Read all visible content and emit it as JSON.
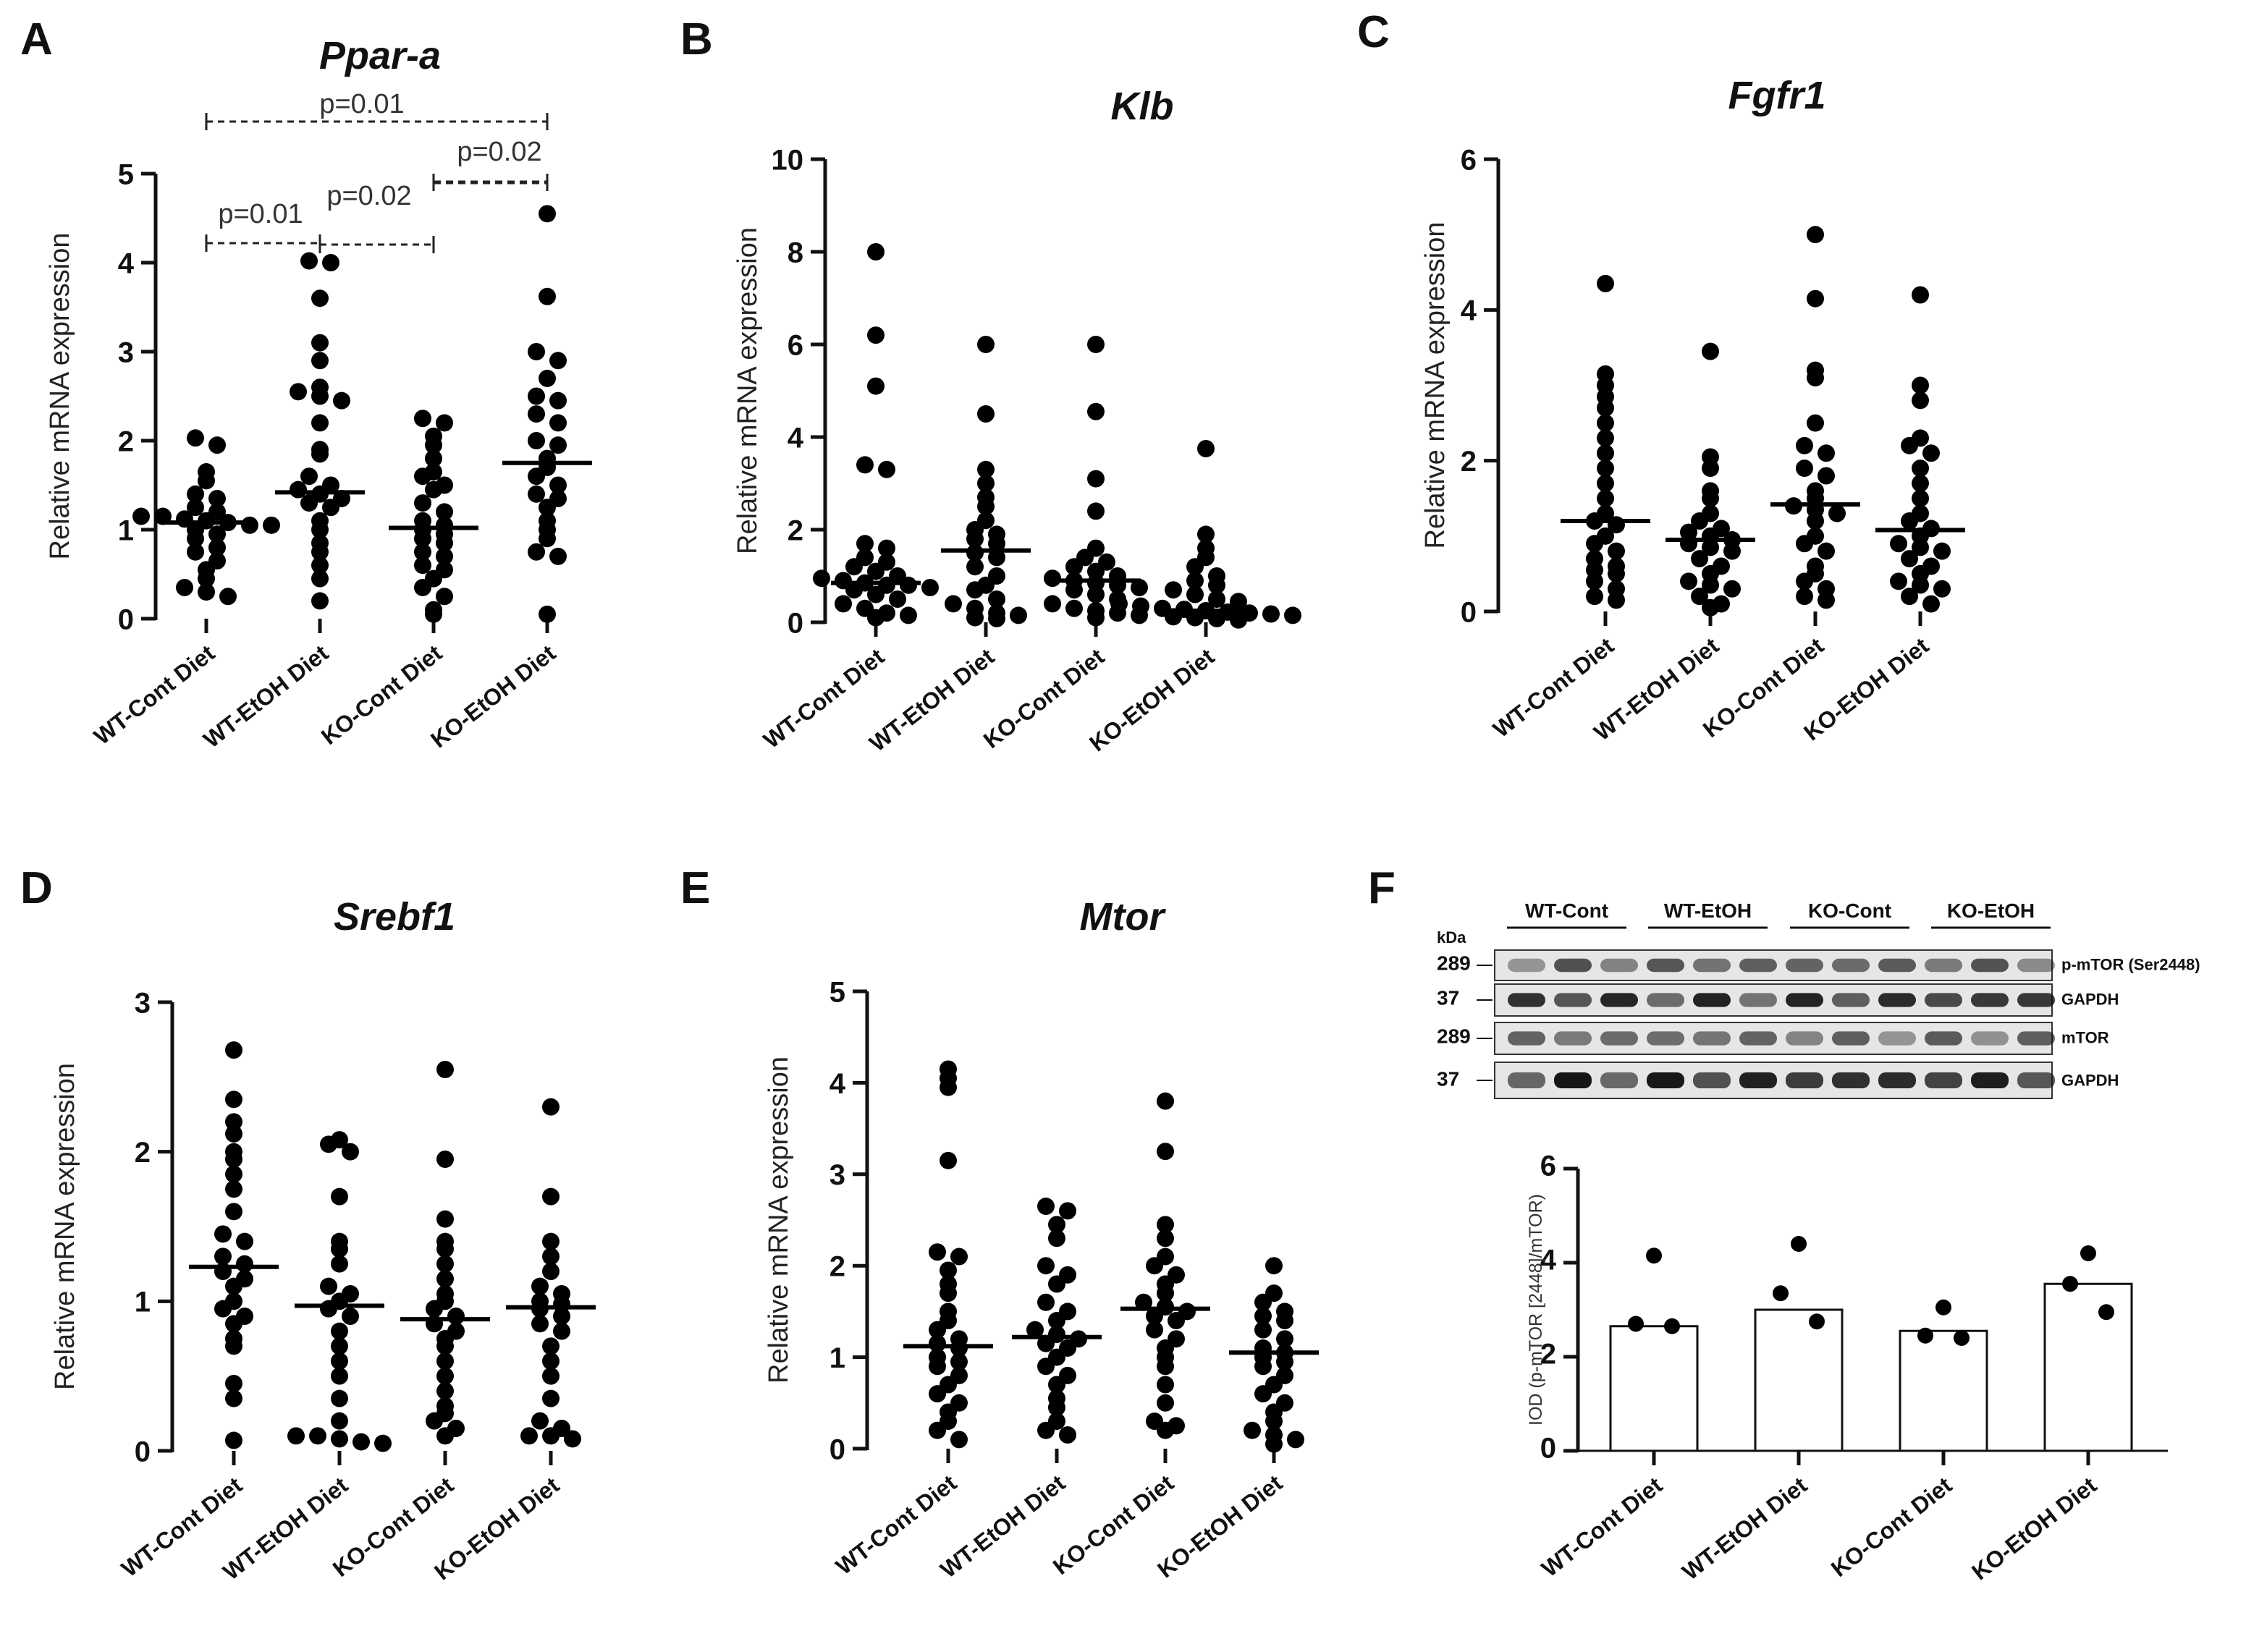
{
  "chart_data": [
    {
      "panel": "A",
      "type": "scatter",
      "title": "Ppar-a",
      "ylabel": "Relative mRNA expression",
      "ylim": [
        0,
        5
      ],
      "yticks": [
        "0",
        "1",
        "2",
        "3",
        "4",
        "5"
      ],
      "categories": [
        "WT-Cont Diet",
        "WT-EtOH Diet",
        "KO-Cont Diet",
        "KO-EtOH Diet"
      ],
      "series": [
        {
          "values": [
            2.03,
            1.95,
            1.65,
            1.55,
            1.4,
            1.35,
            1.25,
            1.2,
            1.15,
            1.15,
            1.12,
            1.1,
            1.08,
            1.05,
            1.05,
            1.0,
            0.95,
            0.9,
            0.8,
            0.75,
            0.65,
            0.55,
            0.45,
            0.35,
            0.3,
            0.25
          ],
          "median": 1.08
        },
        {
          "values": [
            4.02,
            4.0,
            3.6,
            3.1,
            2.9,
            2.6,
            2.55,
            2.5,
            2.45,
            2.2,
            1.9,
            1.85,
            1.6,
            1.5,
            1.45,
            1.4,
            1.35,
            1.3,
            1.25,
            1.1,
            1.0,
            0.85,
            0.75,
            0.6,
            0.45,
            0.2
          ],
          "median": 1.42
        },
        {
          "values": [
            2.25,
            2.2,
            2.05,
            1.95,
            1.8,
            1.65,
            1.6,
            1.5,
            1.45,
            1.3,
            1.2,
            1.1,
            1.05,
            1.0,
            0.95,
            0.9,
            0.85,
            0.75,
            0.7,
            0.6,
            0.55,
            0.45,
            0.35,
            0.25,
            0.1,
            0.05
          ],
          "median": 1.02
        },
        {
          "values": [
            4.55,
            3.62,
            3.0,
            2.9,
            2.7,
            2.5,
            2.45,
            2.3,
            2.2,
            2.0,
            1.95,
            1.8,
            1.7,
            1.6,
            1.5,
            1.4,
            1.35,
            1.25,
            1.1,
            1.0,
            0.9,
            0.75,
            0.7,
            0.05
          ],
          "median": 1.75
        }
      ],
      "significance": [
        {
          "from": 0,
          "to": 3,
          "label": "p=0.01"
        },
        {
          "from": 2,
          "to": 3,
          "label": "p=0.02"
        },
        {
          "from": 0,
          "to": 1,
          "label": "p=0.01"
        },
        {
          "from": 1,
          "to": 2,
          "label": "p=0.02"
        }
      ]
    },
    {
      "panel": "B",
      "type": "scatter",
      "title": "Klb",
      "ylabel": "Relative mRNA expression",
      "ylim": [
        0,
        10
      ],
      "yticks": [
        "0",
        "2",
        "4",
        "6",
        "8",
        "10"
      ],
      "categories": [
        "WT-Cont Diet",
        "WT-EtOH Diet",
        "KO-Cont Diet",
        "KO-EtOH Diet"
      ],
      "series": [
        {
          "values": [
            8.0,
            6.2,
            5.1,
            3.4,
            3.3,
            1.7,
            1.6,
            1.4,
            1.3,
            1.2,
            1.1,
            1.0,
            0.95,
            0.9,
            0.85,
            0.8,
            0.8,
            0.75,
            0.7,
            0.6,
            0.5,
            0.4,
            0.3,
            0.2,
            0.15,
            0.1
          ],
          "median": 0.85
        },
        {
          "values": [
            6.0,
            4.5,
            3.3,
            3.0,
            2.7,
            2.5,
            2.2,
            2.0,
            1.9,
            1.8,
            1.7,
            1.5,
            1.4,
            1.2,
            1.0,
            0.8,
            0.7,
            0.5,
            0.4,
            0.3,
            0.2,
            0.15,
            0.1,
            0.08
          ],
          "median": 1.55
        },
        {
          "values": [
            6.0,
            4.55,
            3.1,
            2.4,
            1.6,
            1.4,
            1.3,
            1.2,
            1.1,
            1.0,
            0.95,
            0.9,
            0.85,
            0.8,
            0.75,
            0.7,
            0.6,
            0.5,
            0.4,
            0.3,
            0.25,
            0.2,
            0.15,
            0.1
          ],
          "median": 0.9
        },
        {
          "values": [
            3.75,
            1.9,
            1.6,
            1.4,
            1.2,
            1.0,
            0.9,
            0.8,
            0.7,
            0.6,
            0.5,
            0.45,
            0.4,
            0.35,
            0.3,
            0.28,
            0.25,
            0.22,
            0.2,
            0.18,
            0.15,
            0.12,
            0.1,
            0.08,
            0.05
          ],
          "median": 0.25
        }
      ]
    },
    {
      "panel": "C",
      "type": "scatter",
      "title": "Fgfr1",
      "ylabel": "Relative mRNA expression",
      "ylim": [
        0,
        6
      ],
      "yticks": [
        "0",
        "2",
        "4",
        "6"
      ],
      "categories": [
        "WT-Cont Diet",
        "WT-EtOH Diet",
        "KO-Cont Diet",
        "KO-EtOH Diet"
      ],
      "series": [
        {
          "values": [
            4.35,
            3.15,
            3.0,
            2.85,
            2.7,
            2.5,
            2.3,
            2.1,
            1.9,
            1.7,
            1.5,
            1.3,
            1.2,
            1.15,
            1.0,
            0.9,
            0.8,
            0.7,
            0.6,
            0.55,
            0.5,
            0.4,
            0.3,
            0.2,
            0.15
          ],
          "median": 1.2
        },
        {
          "values": [
            3.45,
            2.05,
            1.9,
            1.6,
            1.5,
            1.3,
            1.2,
            1.1,
            1.05,
            1.0,
            0.95,
            0.9,
            0.85,
            0.8,
            0.7,
            0.6,
            0.5,
            0.4,
            0.35,
            0.3,
            0.2,
            0.1,
            0.05
          ],
          "median": 0.95
        },
        {
          "values": [
            5.0,
            4.15,
            3.2,
            3.1,
            2.5,
            2.2,
            2.1,
            1.9,
            1.8,
            1.6,
            1.5,
            1.4,
            1.35,
            1.3,
            1.2,
            1.0,
            0.9,
            0.8,
            0.6,
            0.5,
            0.4,
            0.3,
            0.2,
            0.15
          ],
          "median": 1.42
        },
        {
          "values": [
            4.2,
            3.0,
            2.8,
            2.3,
            2.2,
            2.1,
            1.9,
            1.7,
            1.5,
            1.3,
            1.2,
            1.1,
            1.0,
            0.9,
            0.85,
            0.8,
            0.7,
            0.6,
            0.5,
            0.4,
            0.35,
            0.3,
            0.2,
            0.1
          ],
          "median": 1.08
        }
      ]
    },
    {
      "panel": "D",
      "type": "scatter",
      "title": "Srebf1",
      "ylabel": "Relative mRNA expression",
      "ylim": [
        0,
        3
      ],
      "yticks": [
        "0",
        "1",
        "2",
        "3"
      ],
      "categories": [
        "WT-Cont Diet",
        "WT-EtOH Diet",
        "KO-Cont Diet",
        "KO-EtOH Diet"
      ],
      "series": [
        {
          "values": [
            2.68,
            2.35,
            2.2,
            2.12,
            2.0,
            1.95,
            1.85,
            1.75,
            1.6,
            1.45,
            1.4,
            1.3,
            1.25,
            1.2,
            1.15,
            1.1,
            1.0,
            0.95,
            0.9,
            0.85,
            0.75,
            0.7,
            0.45,
            0.35,
            0.07
          ],
          "median": 1.23
        },
        {
          "values": [
            2.08,
            2.05,
            2.0,
            1.7,
            1.4,
            1.35,
            1.25,
            1.1,
            1.05,
            1.0,
            0.95,
            0.9,
            0.8,
            0.7,
            0.6,
            0.5,
            0.35,
            0.2,
            0.1,
            0.1,
            0.08,
            0.06,
            0.05
          ],
          "median": 0.97
        },
        {
          "values": [
            2.55,
            1.95,
            1.55,
            1.4,
            1.35,
            1.25,
            1.15,
            1.05,
            1.0,
            0.95,
            0.9,
            0.85,
            0.8,
            0.75,
            0.7,
            0.6,
            0.5,
            0.4,
            0.3,
            0.25,
            0.2,
            0.15,
            0.1
          ],
          "median": 0.88
        },
        {
          "values": [
            2.3,
            1.7,
            1.4,
            1.3,
            1.2,
            1.1,
            1.05,
            1.0,
            0.98,
            0.95,
            0.9,
            0.85,
            0.8,
            0.7,
            0.6,
            0.5,
            0.35,
            0.2,
            0.15,
            0.1,
            0.1,
            0.08
          ],
          "median": 0.96
        }
      ]
    },
    {
      "panel": "E",
      "type": "scatter",
      "title": "Mtor",
      "ylabel": "Relative mRNA expression",
      "ylim": [
        0,
        5
      ],
      "yticks": [
        "0",
        "1",
        "2",
        "3",
        "4",
        "5"
      ],
      "categories": [
        "WT-Cont Diet",
        "WT-EtOH Diet",
        "KO-Cont Diet",
        "KO-EtOH Diet"
      ],
      "series": [
        {
          "values": [
            4.15,
            4.05,
            3.95,
            3.15,
            2.15,
            2.1,
            1.95,
            1.8,
            1.7,
            1.5,
            1.4,
            1.3,
            1.2,
            1.15,
            1.1,
            1.0,
            0.95,
            0.9,
            0.8,
            0.7,
            0.6,
            0.5,
            0.4,
            0.3,
            0.2,
            0.1
          ],
          "median": 1.12
        },
        {
          "values": [
            2.65,
            2.6,
            2.45,
            2.3,
            2.0,
            1.9,
            1.8,
            1.6,
            1.5,
            1.4,
            1.3,
            1.25,
            1.2,
            1.15,
            1.1,
            1.0,
            0.9,
            0.8,
            0.7,
            0.55,
            0.45,
            0.3,
            0.2,
            0.15
          ],
          "median": 1.22
        },
        {
          "values": [
            3.8,
            3.25,
            2.45,
            2.3,
            2.1,
            2.0,
            1.9,
            1.8,
            1.7,
            1.6,
            1.55,
            1.5,
            1.45,
            1.4,
            1.3,
            1.2,
            1.1,
            1.0,
            0.9,
            0.7,
            0.5,
            0.3,
            0.25,
            0.2
          ],
          "median": 1.53
        },
        {
          "values": [
            2.0,
            1.7,
            1.6,
            1.5,
            1.45,
            1.4,
            1.3,
            1.2,
            1.1,
            1.05,
            1.0,
            0.95,
            0.9,
            0.8,
            0.7,
            0.6,
            0.5,
            0.4,
            0.3,
            0.2,
            0.15,
            0.1,
            0.05
          ],
          "median": 1.05
        }
      ]
    },
    {
      "panel": "F",
      "type": "bar",
      "ylabel": "IOD (p-mTOR [2448]/mTOR)",
      "ylim": [
        0,
        6
      ],
      "yticks": [
        "0",
        "2",
        "4",
        "6"
      ],
      "categories": [
        "WT-Cont Diet",
        "WT-EtOH Diet",
        "KO-Cont Diet",
        "KO-EtOH Diet"
      ],
      "values": [
        2.65,
        3.0,
        2.55,
        3.55
      ],
      "points": [
        [
          4.15,
          2.7,
          2.65
        ],
        [
          4.4,
          3.35,
          2.75
        ],
        [
          3.05,
          2.45,
          2.4
        ],
        [
          4.2,
          3.55,
          2.95
        ]
      ]
    }
  ],
  "blot": {
    "kda_label": "kDa",
    "groups": [
      "WT-Cont",
      "WT-EtOH",
      "KO-Cont",
      "KO-EtOH"
    ],
    "rows": [
      {
        "label": "p-mTOR (Ser2448)",
        "kda": "289"
      },
      {
        "label": "GAPDH",
        "kda": "37"
      },
      {
        "label": "mTOR",
        "kda": "289"
      },
      {
        "label": "GAPDH",
        "kda": "37"
      }
    ]
  }
}
